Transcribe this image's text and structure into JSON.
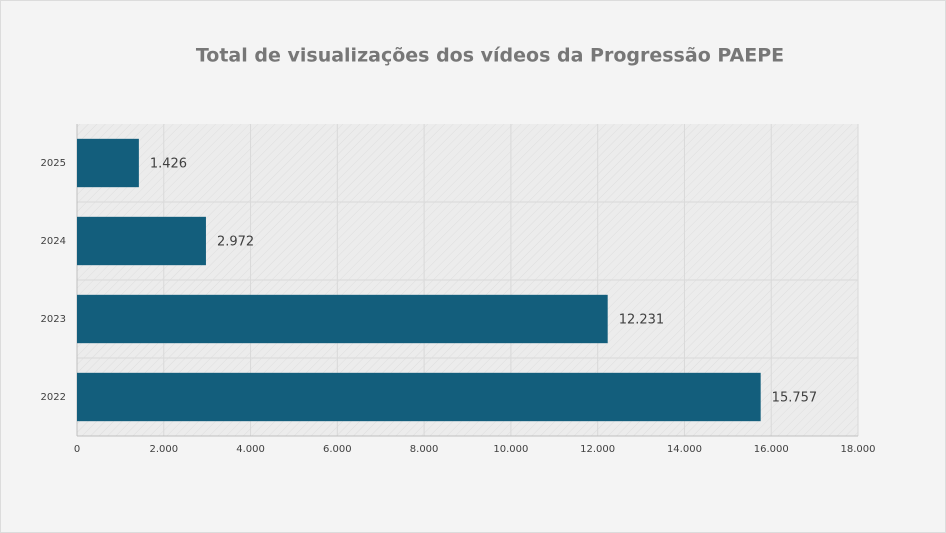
{
  "chart_data": {
    "type": "bar",
    "orientation": "horizontal",
    "title": "Total de visualizações dos vídeos da Progressão PAEPE",
    "categories": [
      "2025",
      "2024",
      "2023",
      "2022"
    ],
    "values": [
      1426,
      2972,
      12231,
      15757
    ],
    "value_labels": [
      "1.426",
      "2.972",
      "12.231",
      "15.757"
    ],
    "color": "#135e7c",
    "xlim": [
      0,
      18000
    ],
    "xticks": [
      0,
      {
        "value": 2000,
        "label": "2.000"
      },
      {
        "value": 4000,
        "label": "4.000"
      },
      {
        "value": 6000,
        "label": "6.000"
      },
      {
        "value": 8000,
        "label": "8.000"
      },
      {
        "value": 10000,
        "label": "10.000"
      },
      {
        "value": 12000,
        "label": "12.000"
      },
      {
        "value": 14000,
        "label": "14.000"
      },
      {
        "value": 16000,
        "label": "16.000"
      },
      {
        "value": 18000,
        "label": "18.000"
      }
    ],
    "grid": true
  }
}
